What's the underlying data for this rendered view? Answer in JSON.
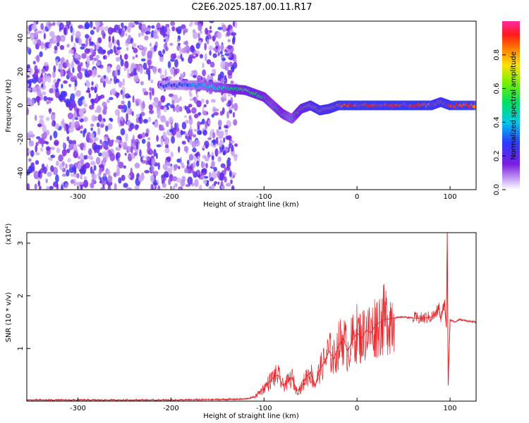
{
  "title": "C2E6.2025.187.00.11.R17",
  "colors": {
    "snr_line": "#e8262b",
    "spectrogram_low": "#7b1fe0",
    "spectrogram_mid": "#00c8c0",
    "spectrogram_high": "#ff1a1a"
  },
  "chart_data": [
    {
      "type": "heatmap",
      "xlabel": "Height of straight line (km)",
      "ylabel": "Frequency (Hz)",
      "xlim": [
        -355,
        128
      ],
      "ylim": [
        -50,
        50
      ],
      "x_ticks": [
        "-300",
        "-200",
        "-100",
        "0",
        "100"
      ],
      "x_tick_values": [
        -300,
        -200,
        -100,
        0,
        100
      ],
      "y_ticks": [
        "40",
        "20",
        "0",
        "-20",
        "-40"
      ],
      "y_tick_values": [
        40,
        20,
        0,
        -20,
        -40
      ],
      "colorbar": {
        "label": "Normalized spectral amplitude",
        "range": [
          0,
          1
        ],
        "ticks": [
          "0.0",
          "0.2",
          "0.4",
          "0.6",
          "0.8"
        ],
        "tick_values": [
          0,
          0.2,
          0.4,
          0.6,
          0.8
        ],
        "colormap": "rainbow (purple-blue-cyan-green-yellow-red-magenta)"
      },
      "noise_region_x": [
        -355,
        -130
      ],
      "ridge": {
        "x": [
          -210,
          -170,
          -140,
          -120,
          -100,
          -90,
          -80,
          -70,
          -60,
          -50,
          -40,
          -30,
          -20,
          0,
          20,
          40,
          60,
          80,
          90,
          100,
          128
        ],
        "freq": [
          12,
          12,
          10,
          9,
          5,
          0,
          -5,
          -8,
          -2,
          0,
          -3,
          -2,
          0,
          0,
          0,
          0,
          0,
          0,
          2,
          0,
          0
        ],
        "amplitude": [
          0.25,
          0.35,
          0.45,
          0.55,
          0.5,
          0.45,
          0.5,
          0.4,
          0.55,
          0.7,
          0.8,
          0.75,
          0.85,
          0.9,
          0.9,
          0.9,
          0.9,
          0.85,
          0.8,
          0.9,
          0.85
        ]
      }
    },
    {
      "type": "line",
      "xlabel": "Height of straight line (km)",
      "ylabel": "SNR (10 * v/v)",
      "y_multiplier": "(x10⁴)",
      "xlim": [
        -355,
        128
      ],
      "ylim": [
        0,
        3.2
      ],
      "x_ticks": [
        "-300",
        "-200",
        "-100",
        "0",
        "100"
      ],
      "x_tick_values": [
        -300,
        -200,
        -100,
        0,
        100
      ],
      "y_ticks": [
        "3",
        "2",
        "1"
      ],
      "y_tick_values": [
        3,
        2,
        1
      ],
      "series": [
        {
          "x": [
            -355,
            -300,
            -250,
            -200,
            -150,
            -120,
            -110,
            -100,
            -95,
            -90,
            -85,
            -80,
            -75,
            -70,
            -65,
            -60,
            -55,
            -50,
            -45,
            -40,
            -35,
            -30,
            -25,
            -20,
            -15,
            -10,
            -5,
            0,
            5,
            10,
            15,
            20,
            25,
            30,
            40,
            50,
            60,
            70,
            80,
            85,
            88,
            90,
            92,
            94,
            96,
            97,
            98,
            100,
            105,
            110,
            120,
            128
          ],
          "values": [
            0.02,
            0.02,
            0.02,
            0.02,
            0.03,
            0.04,
            0.08,
            0.25,
            0.35,
            0.45,
            0.5,
            0.3,
            0.35,
            0.45,
            0.2,
            0.25,
            0.45,
            0.55,
            0.3,
            0.6,
            0.75,
            0.95,
            0.8,
            1.05,
            1.2,
            0.95,
            1.15,
            1.3,
            1.2,
            1.35,
            1.3,
            1.45,
            1.5,
            1.55,
            1.58,
            1.6,
            1.58,
            1.57,
            1.6,
            1.65,
            1.8,
            1.55,
            1.7,
            1.9,
            1.4,
            3.2,
            0.3,
            1.55,
            1.5,
            1.55,
            1.52,
            1.5
          ]
        }
      ]
    }
  ]
}
